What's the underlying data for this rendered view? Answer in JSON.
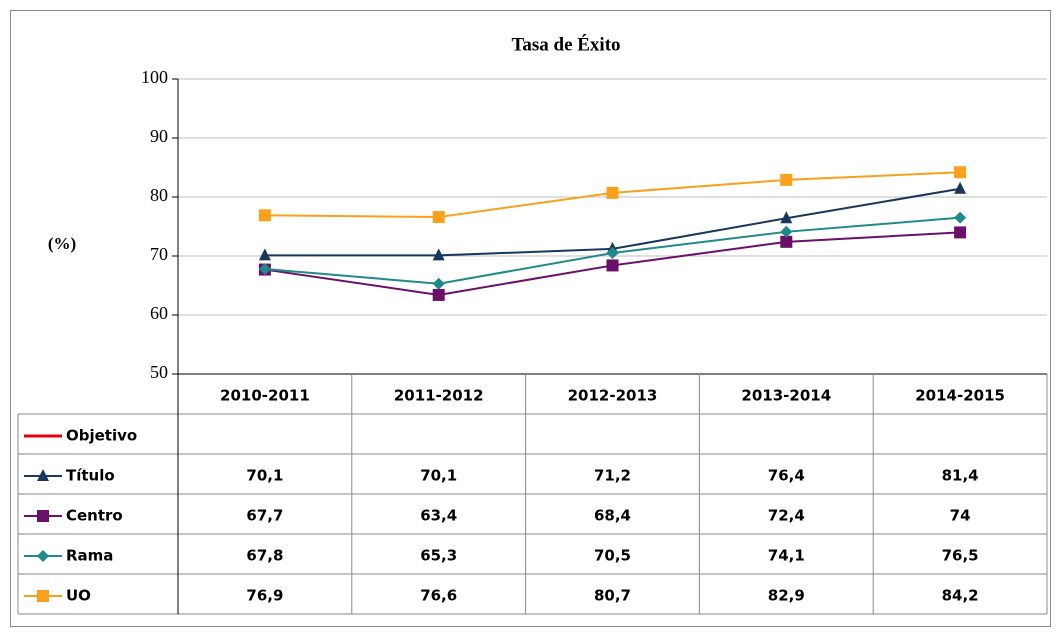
{
  "chart_data": {
    "type": "line",
    "title": "Tasa de Éxito",
    "y_label": "(%)",
    "categories": [
      "2010-2011",
      "2011-2012",
      "2012-2013",
      "2013-2014",
      "2014-2015"
    ],
    "series": [
      {
        "name": "Objetivo",
        "color": "#e3000f",
        "marker": "none",
        "values": [
          null,
          null,
          null,
          null,
          null
        ]
      },
      {
        "name": "Título",
        "color": "#17375e",
        "marker": "triangle",
        "values": [
          70.1,
          70.1,
          71.2,
          76.4,
          81.4
        ],
        "value_labels": [
          "70,1",
          "70,1",
          "71,2",
          "76,4",
          "81,4"
        ]
      },
      {
        "name": "Centro",
        "color": "#6b0f6b",
        "marker": "square",
        "values": [
          67.7,
          63.4,
          68.4,
          72.4,
          74
        ],
        "value_labels": [
          "67,7",
          "63,4",
          "68,4",
          "72,4",
          "74"
        ]
      },
      {
        "name": "Rama",
        "color": "#1f8a8a",
        "marker": "diamond",
        "values": [
          67.8,
          65.3,
          70.5,
          74.1,
          76.5
        ],
        "value_labels": [
          "67,8",
          "65,3",
          "70,5",
          "74,1",
          "76,5"
        ]
      },
      {
        "name": "UO",
        "color": "#f9a11b",
        "marker": "square",
        "values": [
          76.9,
          76.6,
          80.7,
          82.9,
          84.2
        ],
        "value_labels": [
          "76,9",
          "76,6",
          "80,7",
          "82,9",
          "84,2"
        ]
      }
    ],
    "ylim": [
      50,
      100
    ],
    "yticks": [
      50,
      60,
      70,
      80,
      90,
      100
    ],
    "grid": true,
    "data_table": true
  }
}
